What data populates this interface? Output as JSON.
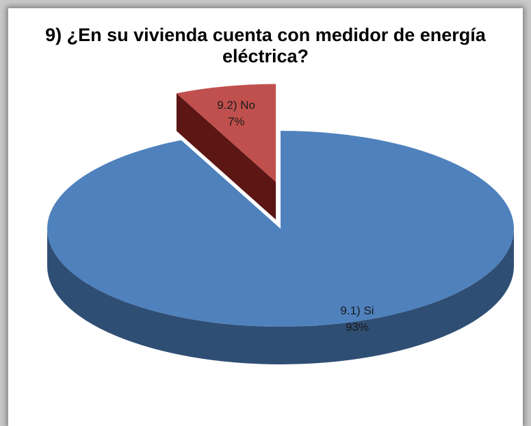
{
  "chart_data": {
    "type": "pie",
    "title": "9) ¿En su vivienda cuenta con medidor de energía eléctrica?",
    "slices": [
      {
        "label": "9.1) Si",
        "percent": "93%",
        "value": 93,
        "color": "#4f81bd",
        "side_color": "#2f4e74",
        "exploded": false
      },
      {
        "label": "9.2) No",
        "percent": "7%",
        "value": 7,
        "color": "#c0504d",
        "side_color": "#5c1614",
        "exploded": true
      }
    ],
    "legend": "none"
  }
}
